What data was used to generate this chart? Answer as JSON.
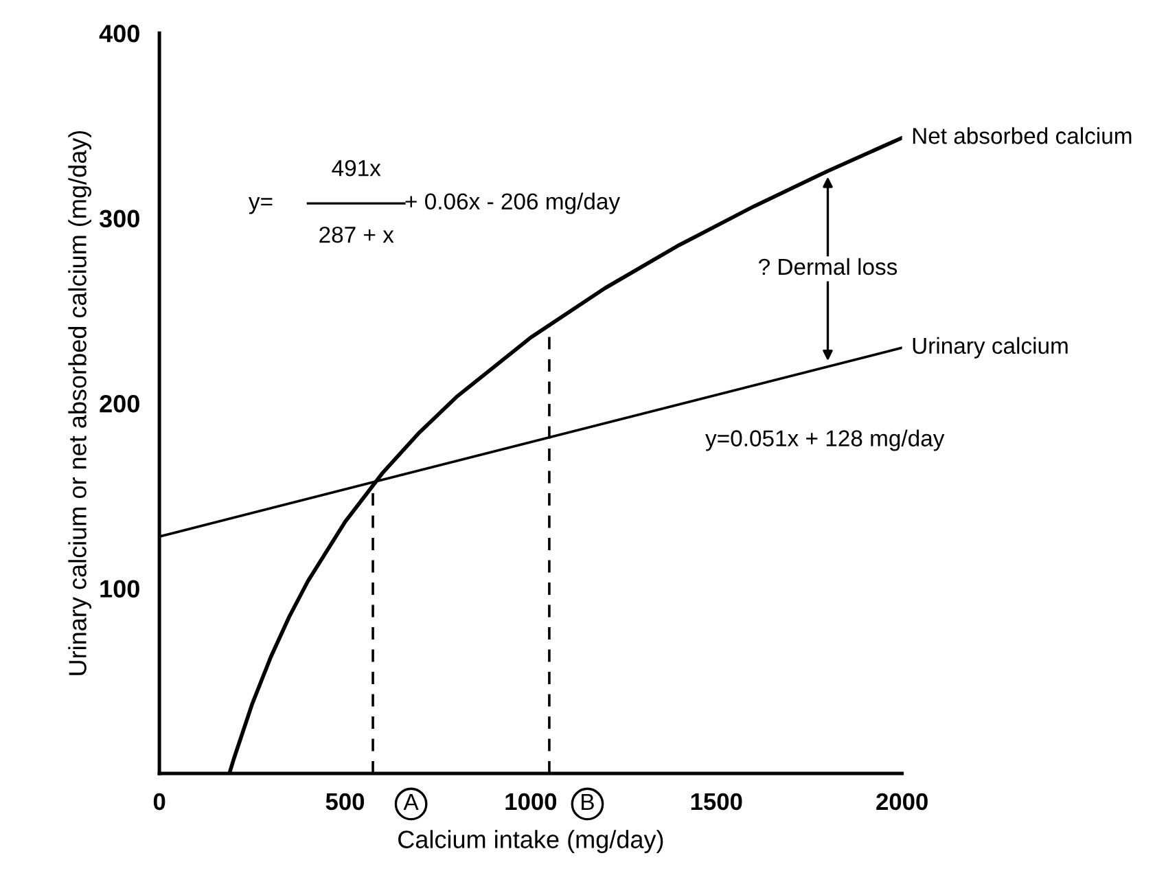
{
  "chart_data": {
    "type": "line",
    "xlabel": "Calcium intake (mg/day)",
    "ylabel": "Urinary calcium or net absorbed calcium (mg/day)",
    "xlim": [
      0,
      2000
    ],
    "ylim": [
      0,
      400
    ],
    "xticks": [
      0,
      500,
      1000,
      1500,
      2000
    ],
    "yticks": [
      100,
      200,
      300,
      400
    ],
    "grid": false,
    "legend": false,
    "marker": "none",
    "series": [
      {
        "name": "Net absorbed calcium",
        "color": "#000000",
        "x": [
          190,
          200,
          250,
          300,
          350,
          400,
          500,
          600,
          700,
          800,
          1000,
          1200,
          1400,
          1600,
          1800,
          2000
        ],
        "values": [
          1,
          7.6,
          37.6,
          62.9,
          84.8,
          103.9,
          135.9,
          162.1,
          184.2,
          203.4,
          235.5,
          262.2,
          285.5,
          306.3,
          325.5,
          343.4
        ]
      },
      {
        "name": "Urinary calcium",
        "color": "#000000",
        "x": [
          0,
          1800,
          2000
        ],
        "values": [
          128,
          219.8,
          230
        ]
      },
      {
        "color": "#000000",
        "line_style": "dashed",
        "x": [
          575,
          575
        ],
        "values": [
          0,
          157
        ]
      },
      {
        "color": "#000000",
        "line_style": "dashed",
        "x": [
          1050,
          1050
        ],
        "values": [
          0,
          243
        ]
      }
    ],
    "annotations": [
      "y=",
      "491x",
      "287 + x",
      "+ 0.06x - 206 mg/day",
      "? Dermal loss",
      "y=0.051x + 128 mg/day",
      {
        "text": "A",
        "x": 575,
        "y": 0
      },
      {
        "text": "B",
        "x": 1050,
        "y": 0
      }
    ]
  }
}
